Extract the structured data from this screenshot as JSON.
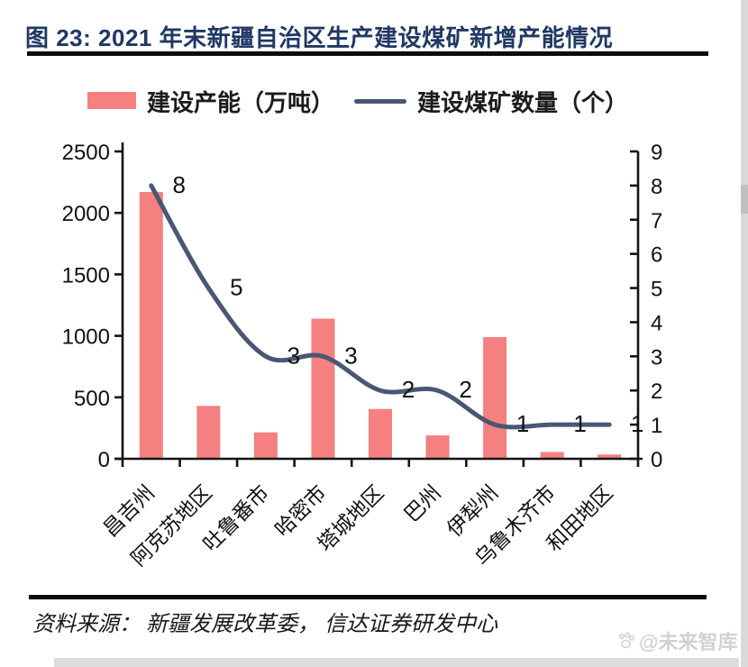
{
  "title": {
    "text": "图 23:  2021 年末新疆自治区生产建设煤矿新增产能情况"
  },
  "legend": {
    "bar_label": "建设产能（万吨）",
    "line_label": "建设煤矿数量（个）"
  },
  "chart_data": {
    "type": "bar",
    "subtype": "bar+line combo, dual axis",
    "categories": [
      "昌吉州",
      "阿克苏地区",
      "吐鲁番市",
      "哈密市",
      "塔城地区",
      "巴州",
      "伊犁州",
      "乌鲁木齐市",
      "和田地区"
    ],
    "series": [
      {
        "name": "建设产能（万吨）",
        "type": "bar",
        "axis": "left",
        "color": "#f58080",
        "values": [
          2170,
          430,
          215,
          1140,
          405,
          190,
          990,
          55,
          35
        ]
      },
      {
        "name": "建设煤矿数量（个）",
        "type": "line",
        "axis": "right",
        "color": "#4a5773",
        "smooth": true,
        "data_labels": true,
        "values": [
          8,
          5,
          3,
          3,
          2,
          2,
          1,
          1,
          1
        ]
      }
    ],
    "left_axis": {
      "min": 0,
      "max": 2500,
      "step": 500,
      "ticks": [
        "0",
        "500",
        "1000",
        "1500",
        "2000",
        "2500"
      ]
    },
    "right_axis": {
      "min": 0,
      "max": 9,
      "step": 1,
      "ticks": [
        "0",
        "1",
        "2",
        "3",
        "4",
        "5",
        "6",
        "7",
        "8",
        "9"
      ]
    },
    "grid": false,
    "legend_position": "top",
    "x_label_rotation_deg": -45
  },
  "source": {
    "text": "资料来源： 新疆发展改革委， 信达证券研发中心"
  },
  "watermark": {
    "text": "@未来智库"
  },
  "colors": {
    "bar": "#f58080",
    "line": "#4a5773",
    "title": "#1f3864",
    "axis": "#141414",
    "text": "#111111",
    "watermark": "#d2d2d2"
  }
}
